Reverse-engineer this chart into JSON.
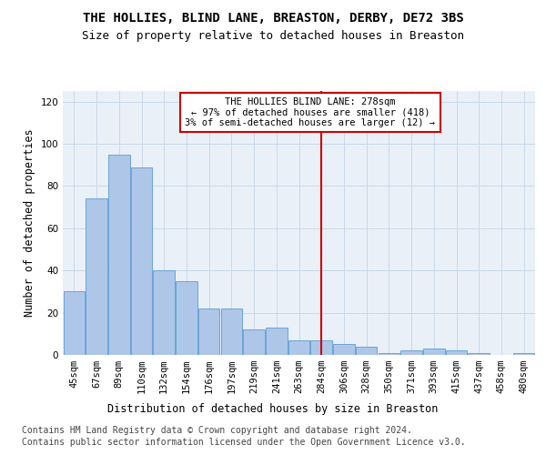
{
  "title": "THE HOLLIES, BLIND LANE, BREASTON, DERBY, DE72 3BS",
  "subtitle": "Size of property relative to detached houses in Breaston",
  "xlabel": "Distribution of detached houses by size in Breaston",
  "ylabel": "Number of detached properties",
  "footnote1": "Contains HM Land Registry data © Crown copyright and database right 2024.",
  "footnote2": "Contains public sector information licensed under the Open Government Licence v3.0.",
  "bar_labels": [
    "45sqm",
    "67sqm",
    "89sqm",
    "110sqm",
    "132sqm",
    "154sqm",
    "176sqm",
    "197sqm",
    "219sqm",
    "241sqm",
    "263sqm",
    "284sqm",
    "306sqm",
    "328sqm",
    "350sqm",
    "371sqm",
    "393sqm",
    "415sqm",
    "437sqm",
    "458sqm",
    "480sqm"
  ],
  "bar_values": [
    30,
    74,
    95,
    89,
    40,
    35,
    22,
    22,
    12,
    13,
    7,
    7,
    5,
    4,
    1,
    2,
    3,
    2,
    1,
    0,
    1
  ],
  "bar_color": "#aec6e8",
  "bar_edge_color": "#5b9bd5",
  "grid_color": "#c8d8e8",
  "bg_color": "#eaf0f8",
  "marker_bin_index": 11,
  "marker_line_color": "#cc0000",
  "annotation_text": "THE HOLLIES BLIND LANE: 278sqm\n← 97% of detached houses are smaller (418)\n3% of semi-detached houses are larger (12) →",
  "annotation_box_color": "#cc0000",
  "ylim": [
    0,
    125
  ],
  "yticks": [
    0,
    20,
    40,
    60,
    80,
    100,
    120
  ],
  "title_fontsize": 10,
  "subtitle_fontsize": 9,
  "axis_label_fontsize": 8.5,
  "tick_fontsize": 7.5,
  "annotation_fontsize": 7.5,
  "footnote_fontsize": 7
}
